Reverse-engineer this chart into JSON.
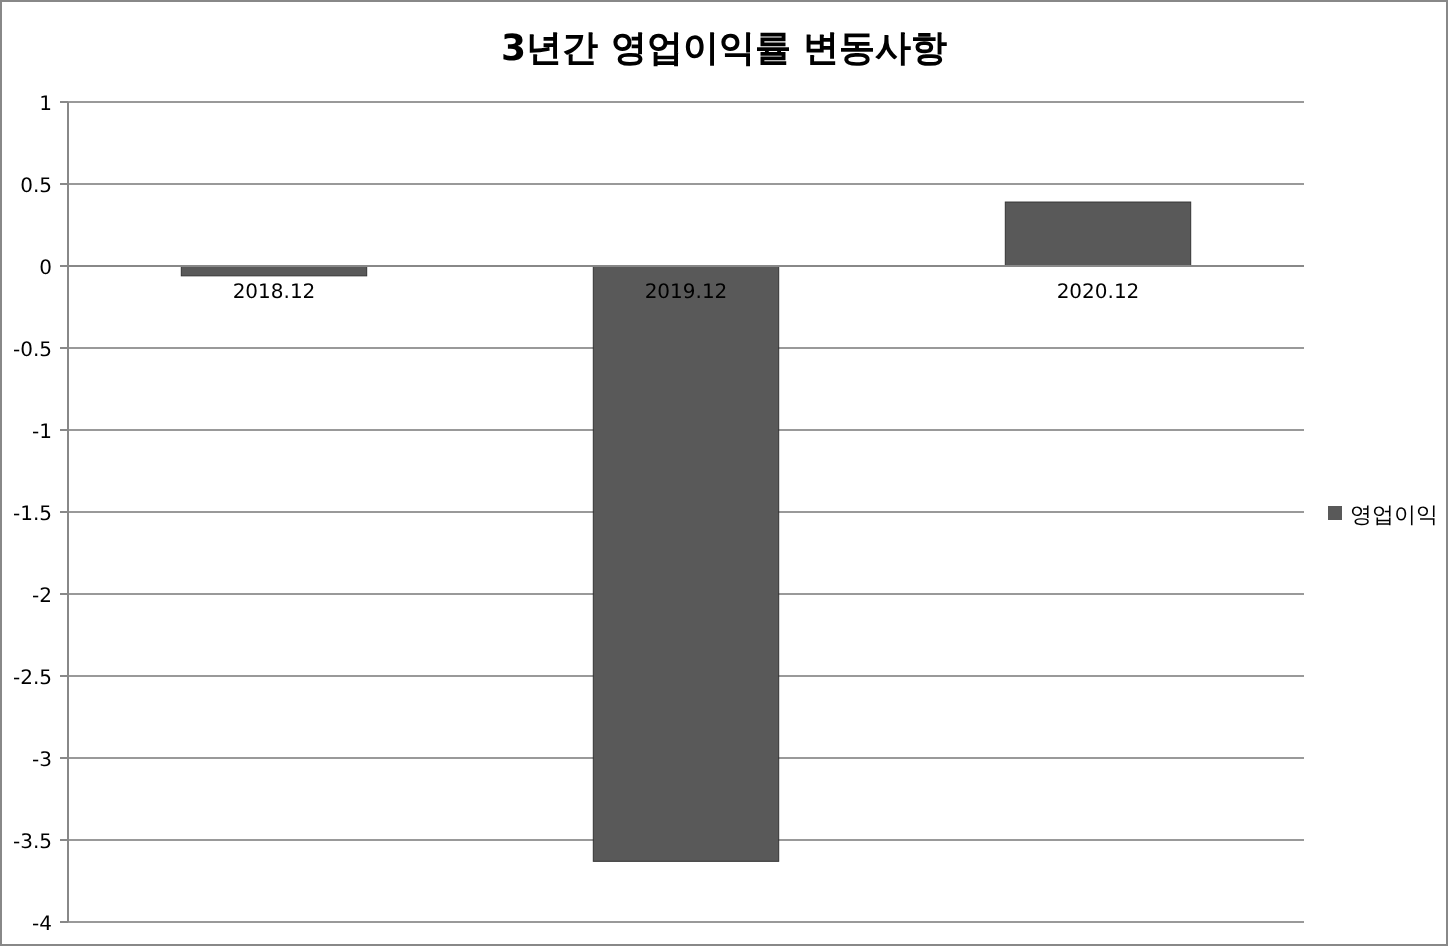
{
  "chart_data": {
    "type": "bar",
    "title": "3년간 영업이익률 변동사항",
    "categories": [
      "2018.12",
      "2019.12",
      "2020.12"
    ],
    "series": [
      {
        "name": "영업이익",
        "color": "#595959",
        "values": [
          -0.06,
          -3.63,
          0.39
        ]
      }
    ],
    "ylim": [
      -4,
      1
    ],
    "yticks": [
      -4,
      -3.5,
      -3,
      -2.5,
      -2,
      -1.5,
      -1,
      -0.5,
      0,
      0.5,
      1
    ],
    "grid": "y",
    "legend": "right"
  }
}
